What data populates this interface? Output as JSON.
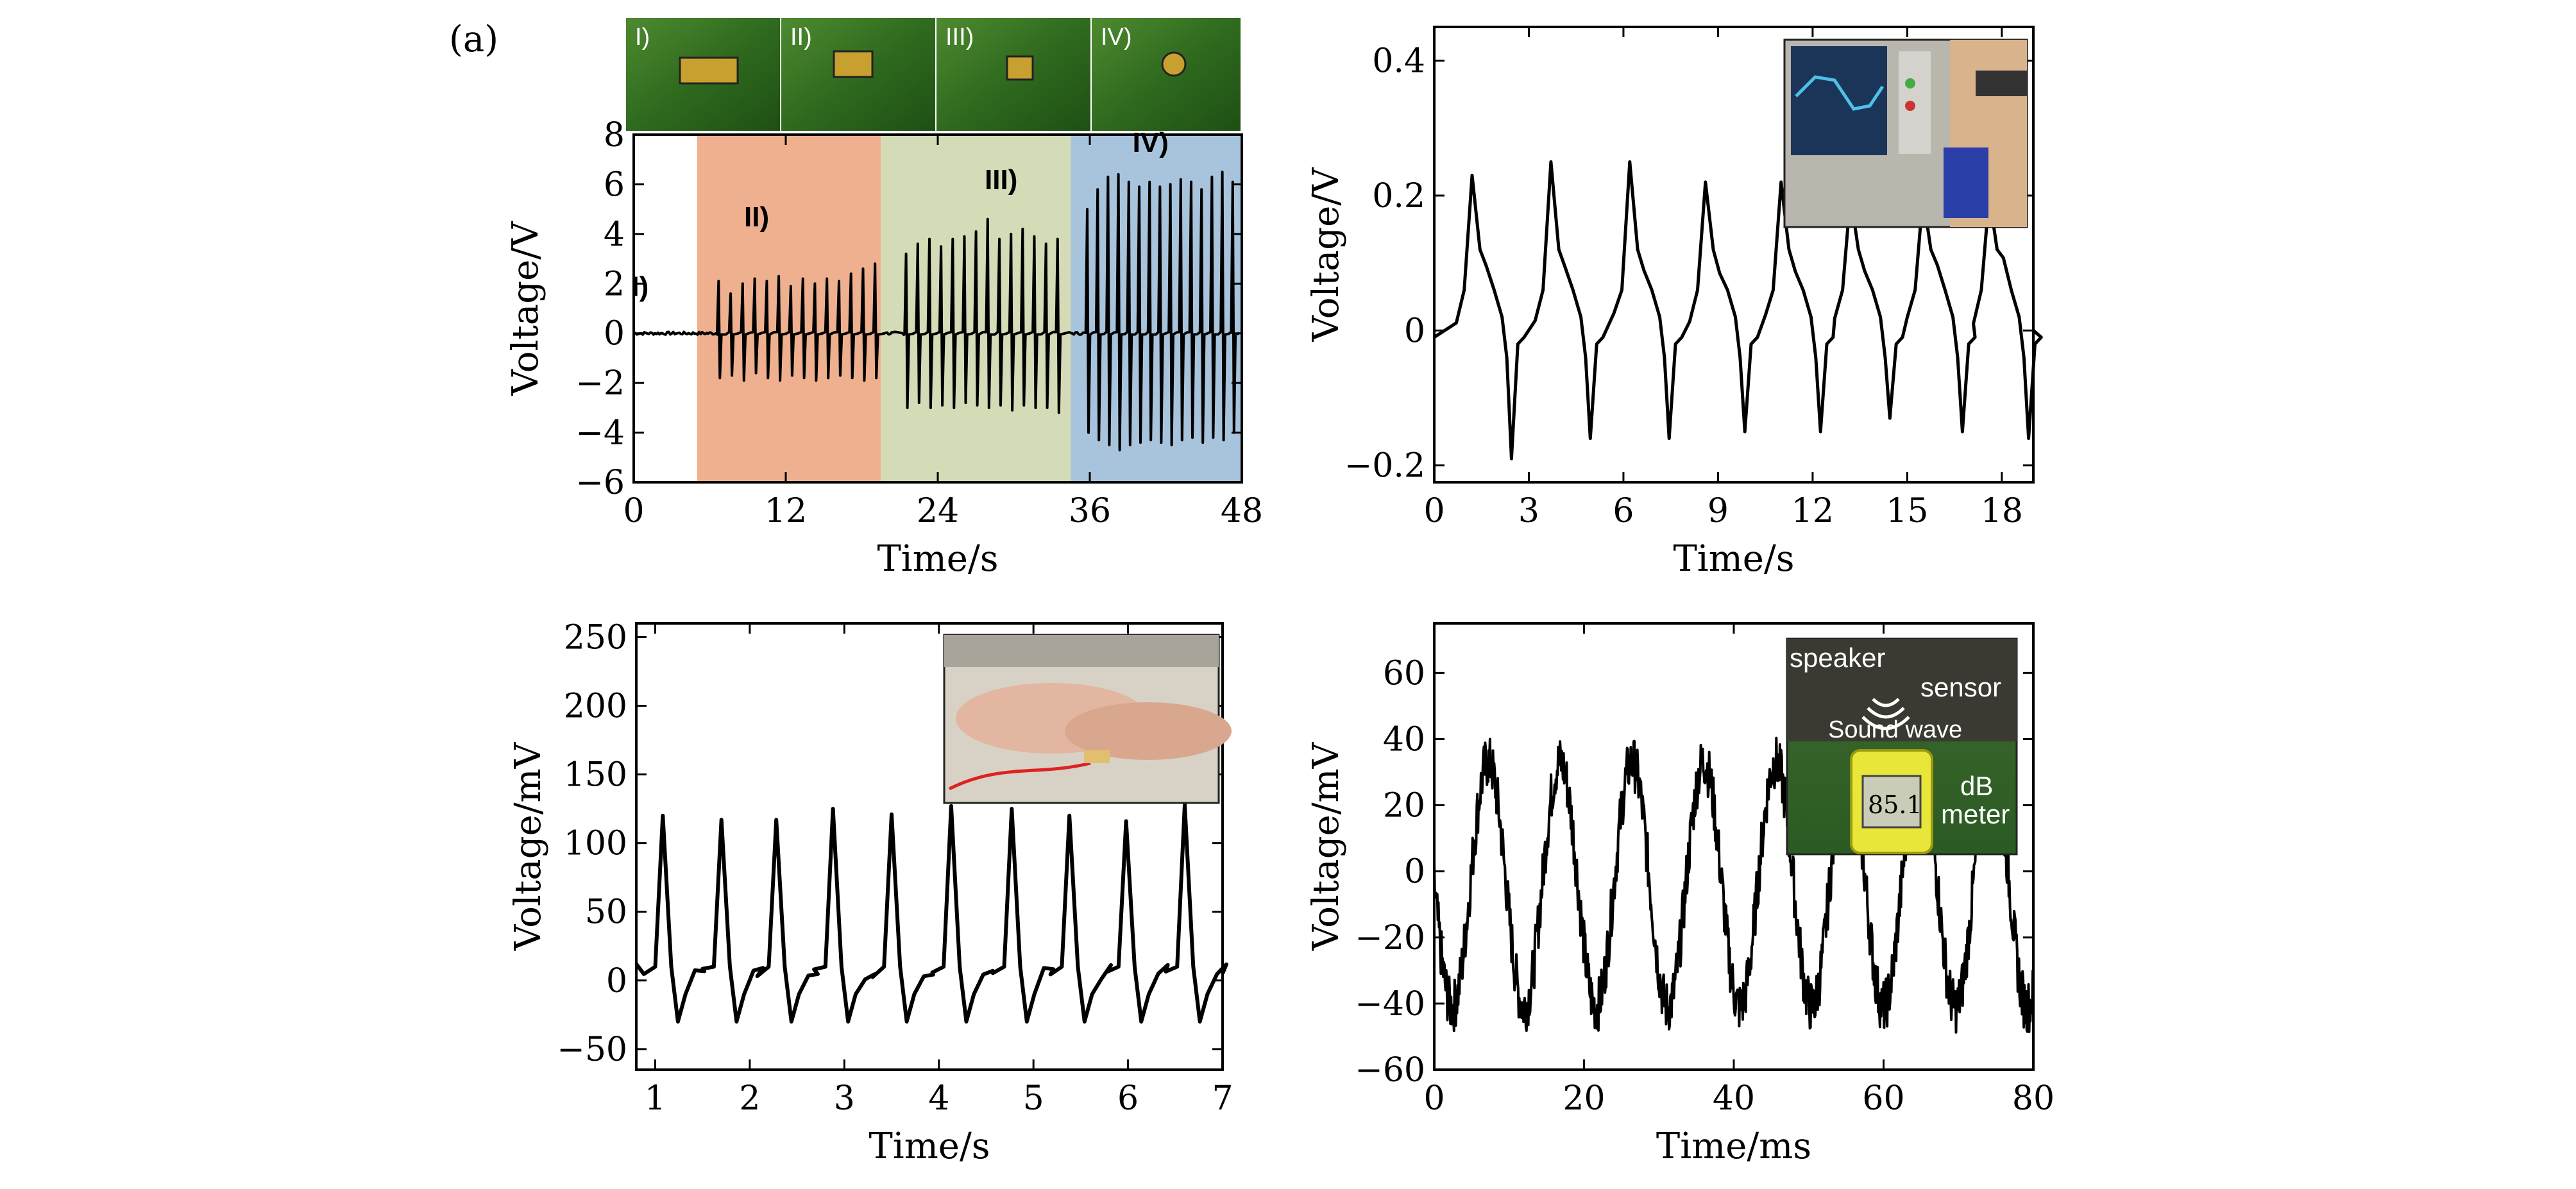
{
  "figure": {
    "panel_label": "(a)"
  },
  "chart_data": [
    {
      "type": "line",
      "id": "a",
      "xlabel": "Time/s",
      "ylabel": "Voltage/V",
      "xlim": [
        0,
        48
      ],
      "ylim": [
        -6,
        8
      ],
      "xticks": [
        0,
        12,
        24,
        36,
        48
      ],
      "yticks": [
        -6,
        -4,
        -2,
        0,
        2,
        4,
        6,
        8
      ],
      "regions": [
        {
          "label": "I)",
          "x": [
            0,
            5
          ],
          "color": "#ffffff"
        },
        {
          "label": "II)",
          "x": [
            5,
            19.5
          ],
          "color": "#eeb08e"
        },
        {
          "label": "III)",
          "x": [
            19.5,
            34.5
          ],
          "color": "#d3dcb6"
        },
        {
          "label": "IV)",
          "x": [
            34.5,
            48
          ],
          "color": "#a8c4dc"
        }
      ],
      "photo_strip": [
        "I)",
        "II)",
        "III)",
        "IV)"
      ],
      "bursts": [
        {
          "start": 6.7,
          "period": 0.95,
          "pos": [
            2.1,
            1.6,
            2.0,
            2.2,
            2.1,
            2.3,
            1.9,
            2.2,
            2.0,
            2.2,
            2.1,
            2.4,
            2.6,
            2.8
          ],
          "neg": [
            -1.8,
            -1.7,
            -1.9,
            -1.6,
            -1.8,
            -1.9,
            -1.7,
            -1.8,
            -1.9,
            -1.8,
            -1.7,
            -1.8,
            -1.9,
            -1.8
          ]
        },
        {
          "start": 21.5,
          "period": 0.92,
          "pos": [
            3.2,
            3.6,
            3.8,
            3.5,
            3.8,
            3.9,
            4.1,
            4.6,
            3.8,
            4.0,
            4.2,
            3.9,
            3.6,
            3.8
          ],
          "neg": [
            -3.0,
            -2.8,
            -3.0,
            -2.9,
            -3.0,
            -2.8,
            -2.9,
            -3.0,
            -2.9,
            -3.1,
            -2.9,
            -3.0,
            -3.0,
            -3.2
          ]
        },
        {
          "start": 35.8,
          "period": 0.82,
          "pos": [
            5.0,
            5.8,
            6.3,
            6.4,
            6.1,
            5.9,
            6.1,
            5.9,
            6.0,
            6.2,
            6.1,
            5.8,
            6.3,
            6.5,
            6.1
          ],
          "neg": [
            -4.0,
            -4.3,
            -4.5,
            -4.7,
            -4.5,
            -4.4,
            -4.3,
            -4.4,
            -4.5,
            -4.3,
            -4.2,
            -4.4,
            -4.2,
            -4.3,
            -4.0
          ]
        }
      ]
    },
    {
      "type": "line",
      "id": "b",
      "xlabel": "Time/s",
      "ylabel": "Voltage/V",
      "xlim": [
        0,
        19
      ],
      "ylim": [
        -0.225,
        0.45
      ],
      "xticks": [
        0,
        3,
        6,
        9,
        12,
        15,
        18
      ],
      "yticks": [
        -0.2,
        0,
        0.2,
        0.4
      ],
      "ytick_labels": [
        "−0.2",
        "0",
        "0.2",
        "0.4"
      ],
      "beats_t": [
        1.2,
        3.7,
        6.2,
        8.6,
        11.0,
        13.2,
        15.5,
        17.6
      ],
      "peaks": [
        0.23,
        0.25,
        0.25,
        0.22,
        0.22,
        0.2,
        0.2,
        0.2
      ],
      "troughs": [
        -0.19,
        -0.16,
        -0.16,
        -0.15,
        -0.15,
        -0.13,
        -0.15,
        -0.16
      ]
    },
    {
      "type": "line",
      "id": "c",
      "xlabel": "Time/s",
      "ylabel": "Voltage/mV",
      "xlim": [
        0.8,
        7
      ],
      "ylim": [
        -65,
        260
      ],
      "xticks": [
        1,
        2,
        3,
        4,
        5,
        6,
        7
      ],
      "yticks": [
        -50,
        0,
        50,
        100,
        150,
        200,
        250
      ],
      "ytick_labels": [
        "−50",
        "0",
        "50",
        "100",
        "150",
        "200",
        "250"
      ],
      "beats_t": [
        1.08,
        1.7,
        2.28,
        2.88,
        3.5,
        4.13,
        4.77,
        5.38,
        5.98,
        6.6
      ],
      "peaks": [
        120,
        117,
        117,
        125,
        121,
        127,
        125,
        120,
        116,
        128
      ]
    },
    {
      "type": "line",
      "id": "d",
      "xlabel": "Time/ms",
      "ylabel": "Voltage/mV",
      "xlim": [
        0,
        80
      ],
      "ylim": [
        -60,
        75
      ],
      "xticks": [
        0,
        20,
        40,
        60,
        80
      ],
      "yticks": [
        -60,
        -40,
        -20,
        0,
        20,
        40,
        60
      ],
      "ytick_labels": [
        "−60",
        "−40",
        "−20",
        "0",
        "20",
        "40",
        "60"
      ],
      "period_ms": 9.6,
      "amplitude_mV": 37,
      "offset_mV": -4
    }
  ],
  "insets": {
    "d": {
      "speaker": "speaker",
      "sensor": "sensor",
      "sound": "Sound wave",
      "db1": "dB",
      "db2": "meter",
      "display": "85.1"
    }
  },
  "colors": {
    "line": "#000000"
  }
}
